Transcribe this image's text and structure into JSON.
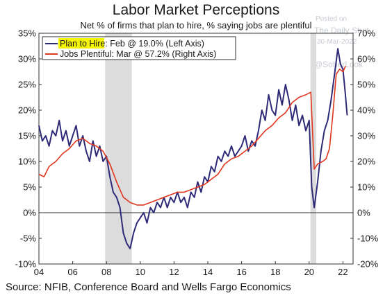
{
  "chart_data": {
    "type": "line",
    "title": "Labor Market Perceptions",
    "subtitle": "Net % of firms that plan to hire, % saying jobs are plentiful",
    "source": "Source: NFIB, Conference Board and Wells Fargo Economics",
    "watermark": [
      "Posted on",
      "The Daily Shot",
      "30-Mar-2022",
      "@SoberLook"
    ],
    "x_ticks": [
      "04",
      "06",
      "08",
      "10",
      "12",
      "14",
      "16",
      "18",
      "20",
      "22"
    ],
    "y_left_ticks": [
      "35%",
      "30%",
      "25%",
      "20%",
      "15%",
      "10%",
      "5%",
      "0%",
      "-5%",
      "-10%"
    ],
    "y_right_ticks": [
      "70%",
      "60%",
      "50%",
      "40%",
      "30%",
      "20%",
      "10%",
      "0%",
      "-10%",
      "-20%"
    ],
    "ylim_left": [
      -10,
      35
    ],
    "ylim_right": [
      -20,
      70
    ],
    "xlim": [
      2004,
      2022.6
    ],
    "recessions": [
      [
        2007.92,
        2009.5
      ],
      [
        2020.08,
        2020.42
      ]
    ],
    "legend_position": "top-left",
    "series": [
      {
        "name": "Plan to Hire",
        "legend_highlight": "Plan to Hire",
        "legend_rest": ": Feb @ 19.0% (Left Axis)",
        "axis": "left",
        "color": "#2e2a78",
        "points": [
          [
            2004.0,
            17
          ],
          [
            2004.2,
            14
          ],
          [
            2004.4,
            15
          ],
          [
            2004.6,
            13
          ],
          [
            2004.8,
            16
          ],
          [
            2005.0,
            15
          ],
          [
            2005.2,
            18
          ],
          [
            2005.4,
            14
          ],
          [
            2005.6,
            16
          ],
          [
            2005.8,
            13
          ],
          [
            2006.0,
            15
          ],
          [
            2006.2,
            17
          ],
          [
            2006.4,
            13
          ],
          [
            2006.6,
            15
          ],
          [
            2006.8,
            12
          ],
          [
            2007.0,
            10
          ],
          [
            2007.2,
            14
          ],
          [
            2007.4,
            11
          ],
          [
            2007.6,
            13
          ],
          [
            2007.8,
            10
          ],
          [
            2008.0,
            11
          ],
          [
            2008.2,
            7
          ],
          [
            2008.4,
            4
          ],
          [
            2008.6,
            3
          ],
          [
            2008.8,
            1
          ],
          [
            2009.0,
            -4
          ],
          [
            2009.2,
            -6
          ],
          [
            2009.4,
            -7
          ],
          [
            2009.6,
            -4
          ],
          [
            2009.8,
            -2
          ],
          [
            2010.0,
            -1
          ],
          [
            2010.2,
            0
          ],
          [
            2010.4,
            -2
          ],
          [
            2010.6,
            1
          ],
          [
            2010.8,
            0
          ],
          [
            2011.0,
            2
          ],
          [
            2011.2,
            1
          ],
          [
            2011.4,
            3
          ],
          [
            2011.6,
            1
          ],
          [
            2011.8,
            3
          ],
          [
            2012.0,
            2
          ],
          [
            2012.2,
            4
          ],
          [
            2012.4,
            2
          ],
          [
            2012.6,
            3
          ],
          [
            2012.8,
            1
          ],
          [
            2013.0,
            4
          ],
          [
            2013.2,
            3
          ],
          [
            2013.4,
            6
          ],
          [
            2013.6,
            4
          ],
          [
            2013.8,
            7
          ],
          [
            2014.0,
            6
          ],
          [
            2014.2,
            9
          ],
          [
            2014.4,
            8
          ],
          [
            2014.6,
            11
          ],
          [
            2014.8,
            10
          ],
          [
            2015.0,
            12
          ],
          [
            2015.2,
            11
          ],
          [
            2015.4,
            13
          ],
          [
            2015.6,
            11
          ],
          [
            2015.8,
            12
          ],
          [
            2016.0,
            13
          ],
          [
            2016.2,
            15
          ],
          [
            2016.4,
            12
          ],
          [
            2016.6,
            14
          ],
          [
            2016.8,
            13
          ],
          [
            2017.0,
            16
          ],
          [
            2017.2,
            20
          ],
          [
            2017.4,
            18
          ],
          [
            2017.6,
            23
          ],
          [
            2017.8,
            20
          ],
          [
            2018.0,
            19
          ],
          [
            2018.2,
            24
          ],
          [
            2018.4,
            21
          ],
          [
            2018.6,
            25
          ],
          [
            2018.8,
            22
          ],
          [
            2019.0,
            18
          ],
          [
            2019.2,
            21
          ],
          [
            2019.4,
            17
          ],
          [
            2019.6,
            19
          ],
          [
            2019.8,
            16
          ],
          [
            2020.0,
            18
          ],
          [
            2020.15,
            5
          ],
          [
            2020.3,
            1
          ],
          [
            2020.5,
            6
          ],
          [
            2020.7,
            12
          ],
          [
            2020.9,
            16
          ],
          [
            2021.1,
            18
          ],
          [
            2021.3,
            22
          ],
          [
            2021.5,
            27
          ],
          [
            2021.7,
            32
          ],
          [
            2021.85,
            29
          ],
          [
            2022.0,
            28
          ],
          [
            2022.12,
            24
          ],
          [
            2022.25,
            19
          ]
        ]
      },
      {
        "name": "Jobs Plentiful",
        "legend_rest": "Jobs Plentiful: Mar @ 57.2% (Right Axis)",
        "axis": "right",
        "color": "#e0351e",
        "points": [
          [
            2004.0,
            15
          ],
          [
            2004.3,
            14
          ],
          [
            2004.6,
            18
          ],
          [
            2005.0,
            20
          ],
          [
            2005.4,
            23
          ],
          [
            2005.8,
            25
          ],
          [
            2006.2,
            28
          ],
          [
            2006.6,
            29
          ],
          [
            2007.0,
            27
          ],
          [
            2007.4,
            26
          ],
          [
            2007.8,
            24
          ],
          [
            2008.2,
            19
          ],
          [
            2008.6,
            12
          ],
          [
            2009.0,
            6
          ],
          [
            2009.4,
            4
          ],
          [
            2009.8,
            3
          ],
          [
            2010.2,
            3
          ],
          [
            2010.6,
            4
          ],
          [
            2011.0,
            5
          ],
          [
            2011.4,
            6
          ],
          [
            2011.8,
            7
          ],
          [
            2012.2,
            8
          ],
          [
            2012.6,
            8
          ],
          [
            2013.0,
            9
          ],
          [
            2013.4,
            10
          ],
          [
            2013.8,
            11
          ],
          [
            2014.2,
            13
          ],
          [
            2014.6,
            15
          ],
          [
            2015.0,
            19
          ],
          [
            2015.4,
            21
          ],
          [
            2015.8,
            22
          ],
          [
            2016.2,
            24
          ],
          [
            2016.6,
            26
          ],
          [
            2017.0,
            29
          ],
          [
            2017.4,
            32
          ],
          [
            2017.8,
            34
          ],
          [
            2018.2,
            37
          ],
          [
            2018.6,
            39
          ],
          [
            2019.0,
            43
          ],
          [
            2019.4,
            45
          ],
          [
            2019.8,
            46
          ],
          [
            2020.1,
            47
          ],
          [
            2020.3,
            17
          ],
          [
            2020.5,
            19
          ],
          [
            2020.8,
            20
          ],
          [
            2021.0,
            21
          ],
          [
            2021.2,
            25
          ],
          [
            2021.4,
            38
          ],
          [
            2021.6,
            54
          ],
          [
            2021.8,
            56
          ],
          [
            2022.0,
            55
          ],
          [
            2022.15,
            57.2
          ]
        ]
      }
    ]
  }
}
